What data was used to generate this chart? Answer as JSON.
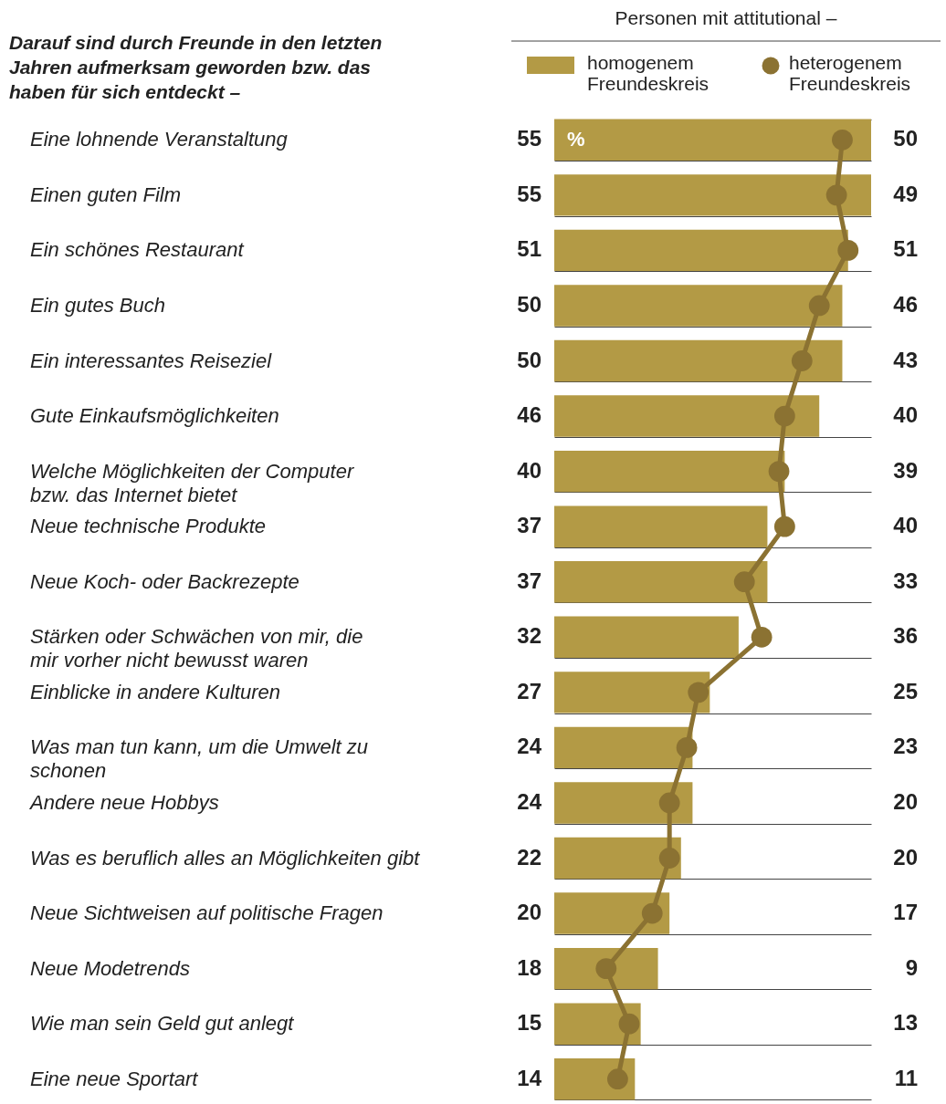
{
  "chart_data": {
    "type": "bar",
    "orientation": "horizontal",
    "title": "Darauf sind durch Freunde in den letzten\nJahren aufmerksam geworden bzw. das\nhaben für sich entdeckt –",
    "legend_title": "Personen mit attitutional –",
    "categories": [
      "Eine lohnende Veranstaltung",
      "Einen guten Film",
      "Ein schönes Restaurant",
      "Ein gutes Buch",
      "Ein interessantes Reiseziel",
      "Gute Einkaufsmöglichkeiten",
      "Welche Möglichkeiten der Computer\nbzw. das Internet bietet",
      "Neue technische Produkte",
      "Neue Koch- oder Backrezepte",
      "Stärken oder Schwächen von mir, die\nmir vorher nicht bewusst waren",
      "Einblicke in andere Kulturen",
      "Was man tun kann, um die Umwelt zu\nschonen",
      "Andere neue Hobbys",
      "Was es beruflich alles an Möglichkeiten gibt",
      "Neue Sichtweisen auf politische Fragen",
      "Neue Modetrends",
      "Wie man sein Geld gut anlegt",
      "Eine neue Sportart"
    ],
    "series": [
      {
        "name": "homogenem\nFreundeskreis",
        "color": "#b39a45",
        "values": [
          55,
          55,
          51,
          50,
          50,
          46,
          40,
          37,
          37,
          32,
          27,
          24,
          24,
          22,
          20,
          18,
          15,
          14
        ]
      },
      {
        "name": "heterogenem\nFreundeskreis",
        "type": "line",
        "color": "#8b7232",
        "values": [
          50,
          49,
          51,
          46,
          43,
          40,
          39,
          40,
          33,
          36,
          25,
          23,
          20,
          20,
          17,
          9,
          13,
          11
        ]
      }
    ],
    "data_labels": true,
    "marker": "circle",
    "grid": "y",
    "legend": "top right",
    "annotations": [
      "%"
    ]
  }
}
